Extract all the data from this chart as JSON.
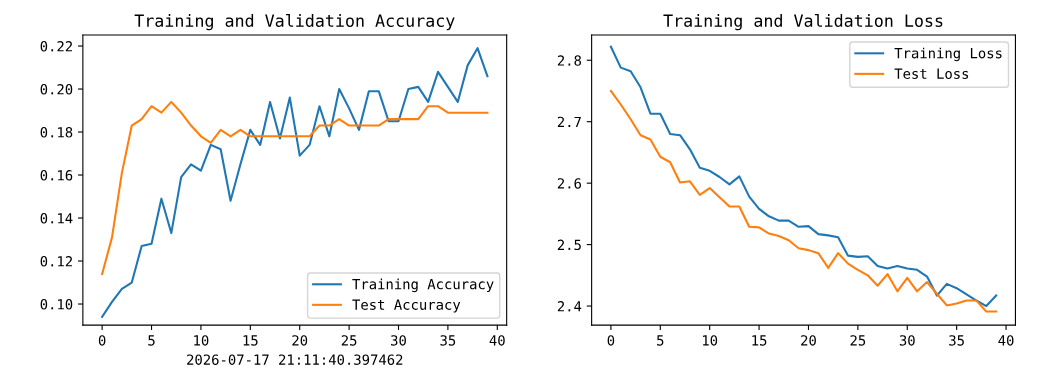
{
  "chart_data": [
    {
      "type": "line",
      "title": "Training and Validation Accuracy",
      "x": [
        0,
        1,
        2,
        3,
        4,
        5,
        6,
        7,
        8,
        9,
        10,
        11,
        12,
        13,
        14,
        15,
        16,
        17,
        18,
        19,
        20,
        21,
        22,
        23,
        24,
        25,
        26,
        27,
        28,
        29,
        30,
        31,
        32,
        33,
        34,
        35,
        36,
        37,
        38,
        39
      ],
      "series": [
        {
          "name": "Training Accuracy",
          "color": "#1f77b4",
          "values": [
            0.094,
            0.101,
            0.107,
            0.11,
            0.127,
            0.128,
            0.149,
            0.133,
            0.159,
            0.165,
            0.162,
            0.174,
            0.172,
            0.148,
            0.165,
            0.181,
            0.174,
            0.194,
            0.177,
            0.196,
            0.169,
            0.174,
            0.192,
            0.178,
            0.2,
            0.191,
            0.181,
            0.199,
            0.199,
            0.185,
            0.185,
            0.2,
            0.201,
            0.194,
            0.208,
            0.201,
            0.194,
            0.211,
            0.219,
            0.206
          ]
        },
        {
          "name": "Test Accuracy",
          "color": "#ff7f0e",
          "values": [
            0.114,
            0.131,
            0.161,
            0.183,
            0.186,
            0.192,
            0.189,
            0.194,
            0.189,
            0.183,
            0.178,
            0.175,
            0.181,
            0.178,
            0.181,
            0.178,
            0.178,
            0.178,
            0.178,
            0.178,
            0.178,
            0.178,
            0.183,
            0.183,
            0.186,
            0.183,
            0.183,
            0.183,
            0.183,
            0.186,
            0.186,
            0.186,
            0.186,
            0.192,
            0.192,
            0.189,
            0.189,
            0.189,
            0.189,
            0.189
          ]
        }
      ],
      "xlim": [
        -1.95,
        40.95
      ],
      "xticks": [
        0,
        5,
        10,
        15,
        20,
        25,
        30,
        35,
        40
      ],
      "ylim": [
        0.0902,
        0.2251
      ],
      "yticks": [
        {
          "value": 0.1,
          "label": "0.10"
        },
        {
          "value": 0.12,
          "label": "0.12"
        },
        {
          "value": 0.14,
          "label": "0.14"
        },
        {
          "value": 0.16,
          "label": "0.16"
        },
        {
          "value": 0.18,
          "label": "0.18"
        },
        {
          "value": 0.2,
          "label": "0.20"
        },
        {
          "value": 0.22,
          "label": "0.22"
        }
      ],
      "legend": "lower right",
      "grid": false,
      "annotations": [
        "2026-07-17 21:11:40.397462"
      ]
    },
    {
      "type": "line",
      "title": "Training and Validation Loss",
      "x": [
        0,
        1,
        2,
        3,
        4,
        5,
        6,
        7,
        8,
        9,
        10,
        11,
        12,
        13,
        14,
        15,
        16,
        17,
        18,
        19,
        20,
        21,
        22,
        23,
        24,
        25,
        26,
        27,
        28,
        29,
        30,
        31,
        32,
        33,
        34,
        35,
        36,
        37,
        38,
        39
      ],
      "series": [
        {
          "name": "Training Loss",
          "color": "#1f77b4",
          "values": [
            2.822,
            2.788,
            2.782,
            2.756,
            2.713,
            2.713,
            2.68,
            2.678,
            2.655,
            2.625,
            2.62,
            2.61,
            2.598,
            2.611,
            2.578,
            2.558,
            2.546,
            2.539,
            2.539,
            2.529,
            2.53,
            2.517,
            2.515,
            2.512,
            2.482,
            2.48,
            2.481,
            2.465,
            2.461,
            2.465,
            2.461,
            2.459,
            2.448,
            2.417,
            2.436,
            2.429,
            2.419,
            2.409,
            2.4,
            2.417
          ]
        },
        {
          "name": "Test Loss",
          "color": "#ff7f0e",
          "values": [
            2.75,
            2.728,
            2.704,
            2.678,
            2.671,
            2.643,
            2.634,
            2.601,
            2.603,
            2.581,
            2.592,
            2.577,
            2.562,
            2.562,
            2.529,
            2.528,
            2.518,
            2.514,
            2.507,
            2.494,
            2.491,
            2.486,
            2.462,
            2.486,
            2.469,
            2.459,
            2.45,
            2.433,
            2.452,
            2.424,
            2.446,
            2.424,
            2.439,
            2.42,
            2.401,
            2.404,
            2.409,
            2.409,
            2.391,
            2.391
          ]
        }
      ],
      "xlim": [
        -1.95,
        40.95
      ],
      "xticks": [
        0,
        5,
        10,
        15,
        20,
        25,
        30,
        35,
        40
      ],
      "ylim": [
        2.369,
        2.841
      ],
      "yticks": [
        2.4,
        2.5,
        2.6,
        2.7,
        2.8
      ],
      "legend": "upper right",
      "grid": false
    }
  ]
}
